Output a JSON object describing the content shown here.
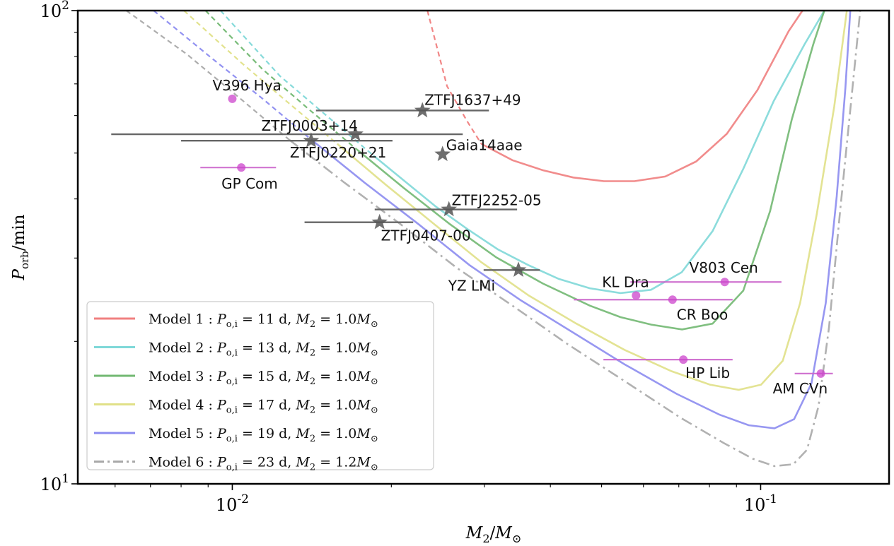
{
  "chart_data": {
    "type": "line",
    "xscale": "log",
    "yscale": "log",
    "xlim": [
      0.0051,
      0.175
    ],
    "ylim": [
      10,
      100
    ],
    "xlabel": "M_2/M_⊙",
    "ylabel": "P_orb/min",
    "xticks": [
      {
        "value": 0.01,
        "label": "10^-2"
      },
      {
        "value": 0.1,
        "label": "10^-1"
      }
    ],
    "yticks": [
      {
        "value": 10,
        "label": "10^1"
      },
      {
        "value": 100,
        "label": "10^2"
      }
    ],
    "legend_position": "lower-left",
    "series": [
      {
        "name": "Model 1 : P_o,i = 11 d, M_2 = 1.0M_⊙",
        "color": "#f08080",
        "style": "solid",
        "dashed_points": [
          [
            0.0234,
            100
          ],
          [
            0.0255,
            69.2
          ],
          [
            0.0278,
            58.5
          ],
          [
            0.0296,
            52.3
          ]
        ],
        "points": [
          [
            0.0296,
            52.3
          ],
          [
            0.0339,
            48.3
          ],
          [
            0.0387,
            46.0
          ],
          [
            0.0442,
            44.4
          ],
          [
            0.0505,
            43.6
          ],
          [
            0.0577,
            43.6
          ],
          [
            0.066,
            44.6
          ],
          [
            0.0755,
            48.0
          ],
          [
            0.0863,
            54.9
          ],
          [
            0.0986,
            67.9
          ],
          [
            0.113,
            90.5
          ],
          [
            0.12,
            100
          ]
        ]
      },
      {
        "name": "Model 2 : P_o,i = 13 d, M_2 = 1.0M_⊙",
        "color": "#7fd8d8",
        "style": "solid",
        "dashed_points": [
          [
            0.0095,
            100
          ],
          [
            0.0123,
            72.8
          ],
          [
            0.0151,
            59.9
          ],
          [
            0.0185,
            49.4
          ]
        ],
        "points": [
          [
            0.0185,
            49.4
          ],
          [
            0.0212,
            43.6
          ],
          [
            0.0243,
            38.5
          ],
          [
            0.0278,
            34.6
          ],
          [
            0.0318,
            31.3
          ],
          [
            0.0363,
            29.0
          ],
          [
            0.0415,
            27.1
          ],
          [
            0.0475,
            25.9
          ],
          [
            0.0543,
            25.3
          ],
          [
            0.062,
            25.7
          ],
          [
            0.0709,
            28.0
          ],
          [
            0.0811,
            34.2
          ],
          [
            0.0927,
            46.3
          ],
          [
            0.1059,
            64.4
          ],
          [
            0.1211,
            84.9
          ],
          [
            0.132,
            100
          ]
        ]
      },
      {
        "name": "Model 3 : P_o,i = 15 d, M_2 = 1.0M_⊙",
        "color": "#72b872",
        "style": "solid",
        "dashed_points": [
          [
            0.0089,
            100
          ],
          [
            0.0114,
            75.2
          ],
          [
            0.014,
            61.7
          ],
          [
            0.0172,
            50.9
          ]
        ],
        "points": [
          [
            0.0172,
            50.9
          ],
          [
            0.0211,
            42.2
          ],
          [
            0.0258,
            35.4
          ],
          [
            0.0316,
            30.1
          ],
          [
            0.0387,
            26.5
          ],
          [
            0.0475,
            23.8
          ],
          [
            0.0543,
            22.5
          ],
          [
            0.0621,
            21.7
          ],
          [
            0.071,
            21.2
          ],
          [
            0.0811,
            21.8
          ],
          [
            0.0927,
            25.6
          ],
          [
            0.1042,
            37.7
          ],
          [
            0.1145,
            58.8
          ],
          [
            0.1258,
            84.9
          ],
          [
            0.132,
            100
          ]
        ]
      },
      {
        "name": "Model 4 : P_o,i = 17 d, M_2 = 1.0M_⊙",
        "color": "#e0e087",
        "style": "solid",
        "dashed_points": [
          [
            0.0081,
            100
          ],
          [
            0.0104,
            77.6
          ],
          [
            0.0128,
            63.7
          ],
          [
            0.0158,
            52.3
          ]
        ],
        "points": [
          [
            0.0158,
            52.3
          ],
          [
            0.0195,
            42.9
          ],
          [
            0.0241,
            35.4
          ],
          [
            0.0296,
            29.4
          ],
          [
            0.0364,
            25.0
          ],
          [
            0.0448,
            21.8
          ],
          [
            0.0552,
            19.2
          ],
          [
            0.0678,
            17.3
          ],
          [
            0.0802,
            16.2
          ],
          [
            0.0909,
            15.8
          ],
          [
            0.1002,
            16.2
          ],
          [
            0.1101,
            18.2
          ],
          [
            0.1188,
            24.1
          ],
          [
            0.1278,
            37.3
          ],
          [
            0.1378,
            62.7
          ],
          [
            0.1456,
            100
          ]
        ]
      },
      {
        "name": "Model 5 : P_o,i = 19 d, M_2 = 1.0M_⊙",
        "color": "#8c8cf0",
        "style": "solid",
        "dashed_points": [
          [
            0.0071,
            100
          ],
          [
            0.0092,
            78.9
          ],
          [
            0.0114,
            65.2
          ],
          [
            0.0141,
            53.4
          ]
        ],
        "points": [
          [
            0.0141,
            53.4
          ],
          [
            0.0178,
            43.3
          ],
          [
            0.0225,
            35.4
          ],
          [
            0.0281,
            29.0
          ],
          [
            0.0352,
            24.4
          ],
          [
            0.0441,
            20.9
          ],
          [
            0.0552,
            17.9
          ],
          [
            0.0693,
            15.5
          ],
          [
            0.0836,
            14.0
          ],
          [
            0.0949,
            13.3
          ],
          [
            0.1062,
            13.1
          ],
          [
            0.1157,
            13.7
          ],
          [
            0.1248,
            16.3
          ],
          [
            0.1328,
            24.1
          ],
          [
            0.1393,
            40.5
          ],
          [
            0.1447,
            68.7
          ],
          [
            0.1478,
            100
          ]
        ]
      },
      {
        "name": "Model 6 : P_o,i = 23 d, M_2 = 1.2M_⊙",
        "color": "#a9a9a9",
        "style": "dashdot",
        "dashed_points": [
          [
            0.0063,
            100
          ],
          [
            0.0082,
            80.9
          ],
          [
            0.0102,
            66.1
          ],
          [
            0.0128,
            53.4
          ]
        ],
        "points": [
          [
            0.0128,
            53.4
          ],
          [
            0.0163,
            43.3
          ],
          [
            0.0208,
            35.4
          ],
          [
            0.0266,
            28.6
          ],
          [
            0.0339,
            23.8
          ],
          [
            0.0432,
            19.7
          ],
          [
            0.0552,
            16.5
          ],
          [
            0.0705,
            13.8
          ],
          [
            0.0851,
            12.2
          ],
          [
            0.0966,
            11.3
          ],
          [
            0.1062,
            10.9
          ],
          [
            0.1153,
            11.0
          ],
          [
            0.1224,
            11.8
          ],
          [
            0.1287,
            14.6
          ],
          [
            0.1347,
            21.4
          ],
          [
            0.1414,
            37.7
          ],
          [
            0.1478,
            61.7
          ],
          [
            0.1543,
            100
          ]
        ]
      }
    ],
    "ztf_sources": [
      {
        "label": "ZTFJ1637+49",
        "x": 0.0229,
        "y": 61.5,
        "xerr": [
          0.0144,
          0.0306
        ]
      },
      {
        "label": "ZTFJ0003+14",
        "x": 0.0171,
        "y": 54.8,
        "xerr": [
          0.0059,
          0.0273
        ]
      },
      {
        "label": "ZTFJ0220+21",
        "x": 0.0141,
        "y": 53.1,
        "xerr": [
          0.008,
          0.0201
        ]
      },
      {
        "label": "Gaia14aae",
        "x": 0.025,
        "y": 49.7,
        "xerr": [
          0.025,
          0.025
        ]
      },
      {
        "label": "ZTFJ2252-05",
        "x": 0.0257,
        "y": 38.0,
        "xerr": [
          0.0186,
          0.0346
        ]
      },
      {
        "label": "ZTFJ0407-00",
        "x": 0.019,
        "y": 35.7,
        "xerr": [
          0.0137,
          0.022
        ]
      },
      {
        "label": "YZ LMi",
        "x": 0.0348,
        "y": 28.3,
        "xerr": [
          0.0299,
          0.0382
        ]
      }
    ],
    "am_cvn_sources": [
      {
        "label": "V396 Hya",
        "x": 0.01,
        "y": 65.1,
        "xerr": [
          0.01,
          0.01
        ]
      },
      {
        "label": "GP Com",
        "x": 0.0104,
        "y": 46.6,
        "xerr": [
          0.0087,
          0.0121
        ]
      },
      {
        "label": "KL Dra",
        "x": 0.0581,
        "y": 25.0,
        "xerr": [
          0.0581,
          0.0581
        ]
      },
      {
        "label": "CR Boo",
        "x": 0.0681,
        "y": 24.5,
        "xerr": [
          0.0443,
          0.0885
        ]
      },
      {
        "label": "V803 Cen",
        "x": 0.0855,
        "y": 26.7,
        "xerr": [
          0.0567,
          0.1095
        ]
      },
      {
        "label": "HP Lib",
        "x": 0.0714,
        "y": 18.3,
        "xerr": [
          0.0504,
          0.0885
        ]
      },
      {
        "label": "AM CVn",
        "x": 0.13,
        "y": 17.1,
        "xerr": [
          0.116,
          0.137
        ]
      }
    ],
    "legend_entries": [
      {
        "model": "Model 1",
        "porb": "11",
        "m2": "1.0",
        "color": "#f08080",
        "style": "solid"
      },
      {
        "model": "Model 2",
        "porb": "13",
        "m2": "1.0",
        "color": "#7fd8d8",
        "style": "solid"
      },
      {
        "model": "Model 3",
        "porb": "15",
        "m2": "1.0",
        "color": "#72b872",
        "style": "solid"
      },
      {
        "model": "Model 4",
        "porb": "17",
        "m2": "1.0",
        "color": "#e0e087",
        "style": "solid"
      },
      {
        "model": "Model 5",
        "porb": "19",
        "m2": "1.0",
        "color": "#8c8cf0",
        "style": "solid"
      },
      {
        "model": "Model 6",
        "porb": "23",
        "m2": "1.2",
        "color": "#a9a9a9",
        "style": "dashdot"
      }
    ]
  }
}
